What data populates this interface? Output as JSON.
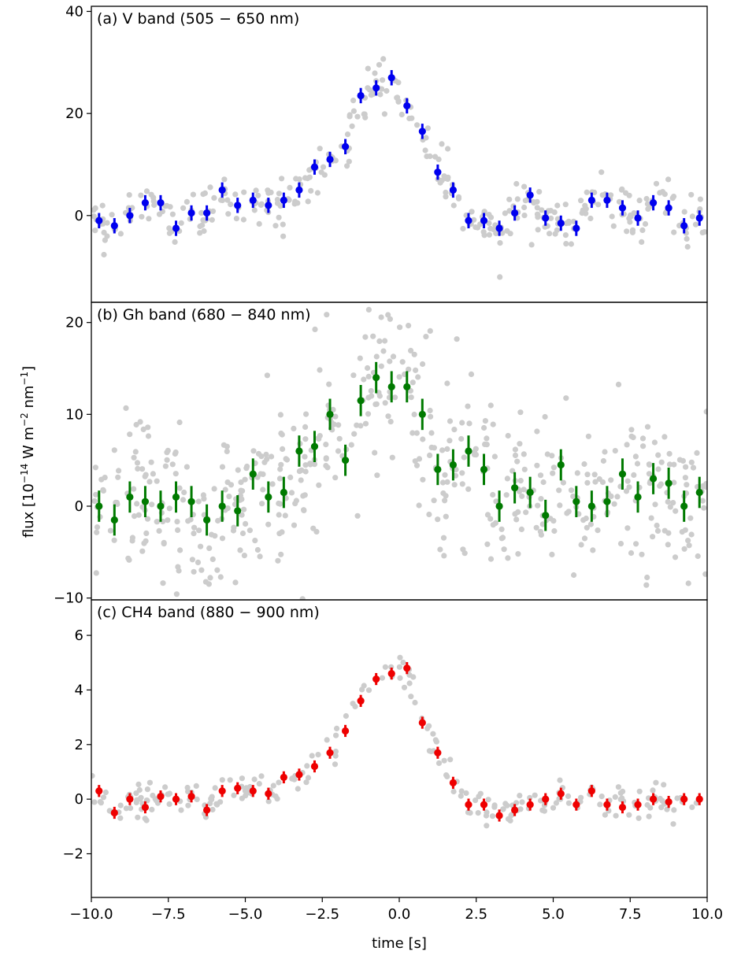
{
  "chart_data": {
    "type": "scatter",
    "xlabel": "time [s]",
    "ylabel": {
      "main": "flux [10",
      "e1": "−14",
      "mid": " W m",
      "e2": "−2",
      "mid2": " nm",
      "e3": "−1",
      "end": "]"
    },
    "xlim": [
      -10,
      10
    ],
    "xticks": [
      "−10.0",
      "−7.5",
      "−5.0",
      "−2.5",
      "0.0",
      "2.5",
      "5.0",
      "7.5",
      "10.0"
    ],
    "xtick_values": [
      -10,
      -7.5,
      -5,
      -2.5,
      0,
      2.5,
      5,
      7.5,
      10
    ],
    "raw_point_color": "#cccccc",
    "panels": [
      {
        "label": "(a) V band (505 − 650 nm)",
        "color": "#0000ee",
        "ylim": [
          -17,
          41
        ],
        "yticks": [
          0,
          20,
          40
        ],
        "ytick_labels": [
          "0",
          "20",
          "40"
        ],
        "x": [
          -9.75,
          -9.25,
          -8.75,
          -8.25,
          -7.75,
          -7.25,
          -6.75,
          -6.25,
          -5.75,
          -5.25,
          -4.75,
          -4.25,
          -3.75,
          -3.25,
          -2.75,
          -2.25,
          -1.75,
          -1.25,
          -0.75,
          -0.25,
          0.25,
          0.75,
          1.25,
          1.75,
          2.25,
          2.75,
          3.25,
          3.75,
          4.25,
          4.75,
          5.25,
          5.75,
          6.25,
          6.75,
          7.25,
          7.75,
          8.25,
          8.75,
          9.25,
          9.75
        ],
        "y": [
          -1,
          -2,
          0,
          2.5,
          2.5,
          -2.5,
          0.5,
          0.5,
          5,
          2,
          3,
          2,
          3,
          5,
          9.5,
          11,
          13.5,
          23.5,
          25,
          27,
          21.5,
          16.5,
          8.5,
          5,
          -1,
          -1,
          -2.5,
          0.5,
          4,
          -0.5,
          -1.5,
          -2.5,
          3,
          3,
          1.5,
          -0.5,
          2.5,
          1.5,
          -2,
          -0.5
        ],
        "err": 1.5
      },
      {
        "label": "(b) Gh band (680 − 840 nm)",
        "color": "#007a00",
        "ylim": [
          -10.2,
          22.2
        ],
        "yticks": [
          -10,
          0,
          10,
          20
        ],
        "ytick_labels": [
          "−10",
          "0",
          "10",
          "20"
        ],
        "x": [
          -9.75,
          -9.25,
          -8.75,
          -8.25,
          -7.75,
          -7.25,
          -6.75,
          -6.25,
          -5.75,
          -5.25,
          -4.75,
          -4.25,
          -3.75,
          -3.25,
          -2.75,
          -2.25,
          -1.75,
          -1.25,
          -0.75,
          -0.25,
          0.25,
          0.75,
          1.25,
          1.75,
          2.25,
          2.75,
          3.25,
          3.75,
          4.25,
          4.75,
          5.25,
          5.75,
          6.25,
          6.75,
          7.25,
          7.75,
          8.25,
          8.75,
          9.25,
          9.75
        ],
        "y": [
          0,
          -1.5,
          1,
          0.5,
          0,
          1,
          0.5,
          -1.5,
          0,
          -0.5,
          3.5,
          1,
          1.5,
          6,
          6.5,
          10,
          5,
          11.5,
          14,
          13,
          13,
          10,
          4,
          4.5,
          6,
          4,
          0,
          2,
          1.5,
          -1,
          4.5,
          0.5,
          0,
          0.5,
          3.5,
          1,
          3,
          2.5,
          0,
          1.5
        ],
        "err": 1.7
      },
      {
        "label": "(c) CH4 band (880 − 900 nm)",
        "color": "#ee0000",
        "ylim": [
          -3.6,
          7.3
        ],
        "yticks": [
          -2,
          0,
          2,
          4,
          6
        ],
        "ytick_labels": [
          "−2",
          "0",
          "2",
          "4",
          "6"
        ],
        "x": [
          -9.75,
          -9.25,
          -8.75,
          -8.25,
          -7.75,
          -7.25,
          -6.75,
          -6.25,
          -5.75,
          -5.25,
          -4.75,
          -4.25,
          -3.75,
          -3.25,
          -2.75,
          -2.25,
          -1.75,
          -1.25,
          -0.75,
          -0.25,
          0.25,
          0.75,
          1.25,
          1.75,
          2.25,
          2.75,
          3.25,
          3.75,
          4.25,
          4.75,
          5.25,
          5.75,
          6.25,
          6.75,
          7.25,
          7.75,
          8.25,
          8.75,
          9.25,
          9.75
        ],
        "y": [
          0.3,
          -0.5,
          0,
          -0.3,
          0.1,
          0,
          0.1,
          -0.4,
          0.3,
          0.4,
          0.3,
          0.2,
          0.8,
          0.9,
          1.2,
          1.7,
          2.5,
          3.6,
          4.4,
          4.6,
          4.8,
          2.8,
          1.7,
          0.6,
          -0.2,
          -0.2,
          -0.6,
          -0.4,
          -0.2,
          0,
          0.2,
          -0.2,
          0.3,
          -0.2,
          -0.3,
          -0.2,
          0,
          -0.1,
          0,
          0
        ],
        "err": 0.22
      }
    ]
  }
}
